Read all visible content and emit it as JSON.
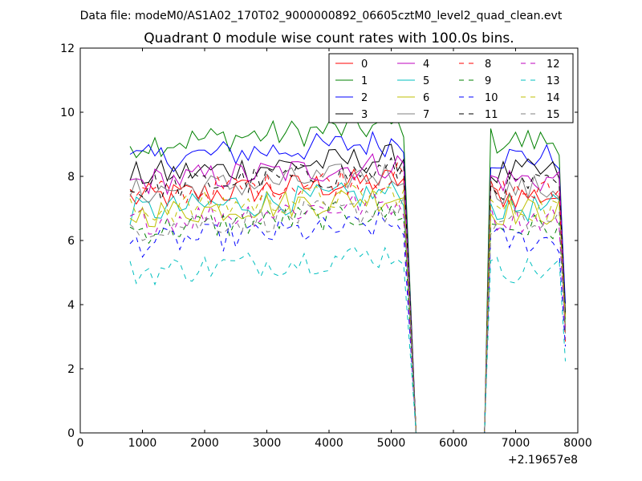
{
  "chart_data": {
    "type": "line",
    "suptitle": "Data file: modeM0/AS1A02_170T02_9000000892_06605cztM0_level2_quad_clean.evt",
    "title": "Quadrant 0 module wise count rates with 100.0s bins.",
    "xlabel": "",
    "ylabel": "",
    "x_offset_label": "+2.19657e8",
    "xlim": [
      0,
      8000
    ],
    "ylim": [
      0,
      12
    ],
    "xticks": [
      "0",
      "1000",
      "2000",
      "3000",
      "4000",
      "5000",
      "6000",
      "7000",
      "8000"
    ],
    "yticks": [
      "0",
      "2",
      "4",
      "6",
      "8",
      "10",
      "12"
    ],
    "grid": false,
    "legend_position": "top-right",
    "legend_columns": 4,
    "gap": [
      5400,
      6500
    ],
    "x_segment_1": [
      800,
      5200
    ],
    "x_segment_2": [
      6600,
      7800
    ],
    "series": [
      {
        "name": "0",
        "color": "#ff0000",
        "dash": "solid",
        "level": 7.3
      },
      {
        "name": "1",
        "color": "#008000",
        "dash": "solid",
        "level": 9.0
      },
      {
        "name": "2",
        "color": "#0000ff",
        "dash": "solid",
        "level": 8.5
      },
      {
        "name": "3",
        "color": "#000000",
        "dash": "solid",
        "level": 8.0
      },
      {
        "name": "4",
        "color": "#bf00bf",
        "dash": "solid",
        "level": 7.8
      },
      {
        "name": "5",
        "color": "#00bfbf",
        "dash": "solid",
        "level": 6.9
      },
      {
        "name": "6",
        "color": "#bfbf00",
        "dash": "solid",
        "level": 6.8
      },
      {
        "name": "7",
        "color": "#808080",
        "dash": "solid",
        "level": 7.5
      },
      {
        "name": "8",
        "color": "#ff0000",
        "dash": "dashed",
        "level": 7.4
      },
      {
        "name": "9",
        "color": "#008000",
        "dash": "dashed",
        "level": 6.3
      },
      {
        "name": "10",
        "color": "#0000ff",
        "dash": "dashed",
        "level": 5.9
      },
      {
        "name": "11",
        "color": "#000000",
        "dash": "dashed",
        "level": 7.6
      },
      {
        "name": "12",
        "color": "#bf00bf",
        "dash": "dashed",
        "level": 6.6
      },
      {
        "name": "13",
        "color": "#00bfbf",
        "dash": "dashed",
        "level": 5.0
      },
      {
        "name": "14",
        "color": "#bfbf00",
        "dash": "dashed",
        "level": 6.9
      },
      {
        "name": "15",
        "color": "#808080",
        "dash": "dashed",
        "level": 6.4
      }
    ]
  }
}
